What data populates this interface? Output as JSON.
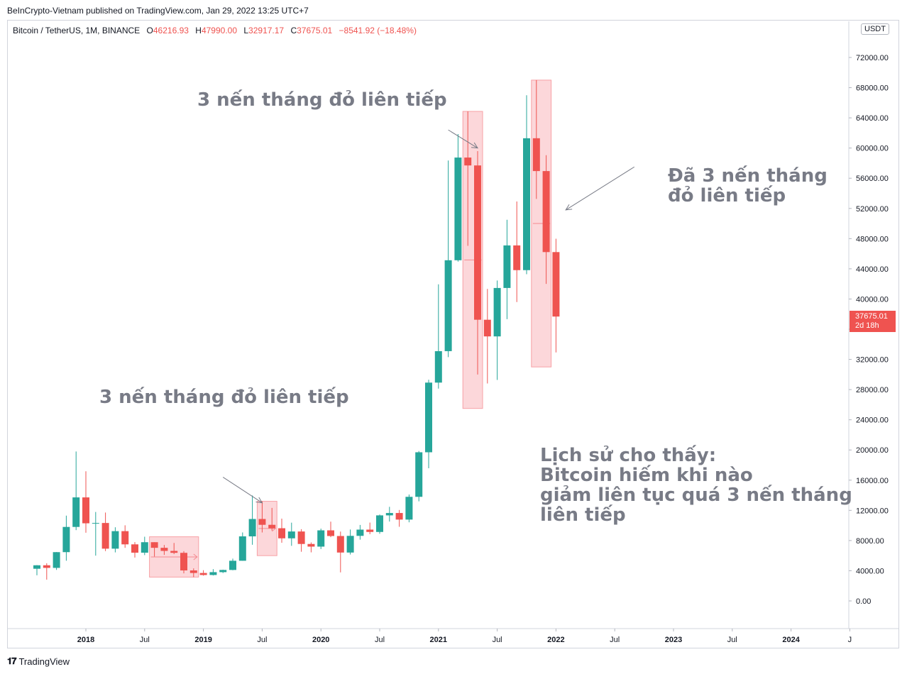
{
  "header": {
    "published": "BeInCrypto-Vietnam published on TradingView.com, Jan 29, 2022 13:25 UTC+7"
  },
  "legend": {
    "symbol": "Bitcoin / TetherUS, 1M, BINANCE",
    "open_label": "O",
    "open": "46216.93",
    "high_label": "H",
    "high": "47990.00",
    "low_label": "L",
    "low": "32917.17",
    "close_label": "C",
    "close": "37675.01",
    "change": "−8541.92 (−18.48%)"
  },
  "price_axis": {
    "currency": "USDT",
    "last_price": "37675.01",
    "countdown": "2d 18h"
  },
  "annotations": {
    "top_label": "3 nến tháng đỏ liên tiếp",
    "right_label": "Đã 3 nến tháng\nđỏ liên tiếp",
    "bottom_label": "3 nến tháng đỏ liên tiếp",
    "history_note": "Lịch sử cho thấy:\nBitcoin hiếm khi nào\ngiảm liên tục quá 3 nến tháng\nliên tiếp"
  },
  "footer": {
    "brand": "TradingView",
    "logo": "tradingview-logo"
  },
  "colors": {
    "up": "#26a69a",
    "down": "#ef5350",
    "highlight": "rgba(242,54,69,0.2)",
    "arrow": "#787b86",
    "text_annotation": "#787b86"
  },
  "chart_data": {
    "type": "candlestick",
    "interval": "1M",
    "ylim": [
      -2000,
      74000
    ],
    "y_ticks": [
      0,
      4000,
      8000,
      12000,
      16000,
      20000,
      24000,
      28000,
      32000,
      36000,
      40000,
      44000,
      48000,
      52000,
      56000,
      60000,
      64000,
      68000,
      72000
    ],
    "y_tick_labels": [
      "0.00",
      "4000.00",
      "8000.00",
      "12000.00",
      "16000.00",
      "20000.00",
      "24000.00",
      "28000.00",
      "32000.00",
      "36000.00",
      "40000.00",
      "44000.00",
      "48000.00",
      "52000.00",
      "56000.00",
      "60000.00",
      "64000.00",
      "68000.00",
      "72000.00"
    ],
    "x_ticks": [
      {
        "month": "2018-01",
        "label": "2018"
      },
      {
        "month": "2018-07",
        "label": "Jul"
      },
      {
        "month": "2019-01",
        "label": "2019"
      },
      {
        "month": "2019-07",
        "label": "Jul"
      },
      {
        "month": "2020-01",
        "label": "2020"
      },
      {
        "month": "2020-07",
        "label": "Jul"
      },
      {
        "month": "2021-01",
        "label": "2021"
      },
      {
        "month": "2021-07",
        "label": "Jul"
      },
      {
        "month": "2022-01",
        "label": "2022"
      },
      {
        "month": "2022-07",
        "label": "Jul"
      },
      {
        "month": "2023-01",
        "label": "2023"
      },
      {
        "month": "2023-07",
        "label": "Jul"
      },
      {
        "month": "2024-01",
        "label": "2024"
      },
      {
        "month": "2024-07",
        "label": "J"
      }
    ],
    "candles": [
      {
        "month": "2017-08",
        "open": 4261,
        "high": 4745,
        "low": 3400,
        "close": 4724
      },
      {
        "month": "2017-09",
        "open": 4724,
        "high": 4989,
        "low": 2817,
        "close": 4378
      },
      {
        "month": "2017-10",
        "open": 4378,
        "high": 6470,
        "low": 4110,
        "close": 6463
      },
      {
        "month": "2017-11",
        "open": 6463,
        "high": 11300,
        "low": 5325,
        "close": 9803
      },
      {
        "month": "2017-12",
        "open": 9803,
        "high": 19798,
        "low": 9380,
        "close": 13716
      },
      {
        "month": "2018-01",
        "open": 13716,
        "high": 17176,
        "low": 9035,
        "close": 10285
      },
      {
        "month": "2018-02",
        "open": 10285,
        "high": 11786,
        "low": 6000,
        "close": 10326
      },
      {
        "month": "2018-03",
        "open": 10326,
        "high": 11710,
        "low": 6600,
        "close": 6923
      },
      {
        "month": "2018-04",
        "open": 6923,
        "high": 9759,
        "low": 6430,
        "close": 9246
      },
      {
        "month": "2018-05",
        "open": 9246,
        "high": 10020,
        "low": 7034,
        "close": 7494
      },
      {
        "month": "2018-06",
        "open": 7494,
        "high": 7786,
        "low": 5750,
        "close": 6391
      },
      {
        "month": "2018-07",
        "open": 6391,
        "high": 8507,
        "low": 6070,
        "close": 7780
      },
      {
        "month": "2018-08",
        "open": 7780,
        "high": 7780,
        "low": 5880,
        "close": 7037
      },
      {
        "month": "2018-09",
        "open": 7037,
        "high": 7410,
        "low": 6100,
        "close": 6626
      },
      {
        "month": "2018-10",
        "open": 6626,
        "high": 7680,
        "low": 6200,
        "close": 6371
      },
      {
        "month": "2018-11",
        "open": 6371,
        "high": 6588,
        "low": 3652,
        "close": 4041
      },
      {
        "month": "2018-12",
        "open": 4041,
        "high": 4312,
        "low": 3156,
        "close": 3702
      },
      {
        "month": "2019-01",
        "open": 3702,
        "high": 4069,
        "low": 3349,
        "close": 3434
      },
      {
        "month": "2019-02",
        "open": 3434,
        "high": 4210,
        "low": 3373,
        "close": 3813
      },
      {
        "month": "2019-03",
        "open": 3813,
        "high": 4140,
        "low": 3690,
        "close": 4103
      },
      {
        "month": "2019-04",
        "open": 4103,
        "high": 5600,
        "low": 4067,
        "close": 5321
      },
      {
        "month": "2019-05",
        "open": 5321,
        "high": 9074,
        "low": 5316,
        "close": 8555
      },
      {
        "month": "2019-06",
        "open": 8555,
        "high": 13970,
        "low": 7440,
        "close": 10855
      },
      {
        "month": "2019-07",
        "open": 10855,
        "high": 13200,
        "low": 9070,
        "close": 10085
      },
      {
        "month": "2019-08",
        "open": 10085,
        "high": 12326,
        "low": 9320,
        "close": 9631
      },
      {
        "month": "2019-09",
        "open": 9631,
        "high": 10905,
        "low": 7710,
        "close": 8294
      },
      {
        "month": "2019-10",
        "open": 8294,
        "high": 10370,
        "low": 7300,
        "close": 9199
      },
      {
        "month": "2019-11",
        "open": 9199,
        "high": 9505,
        "low": 6515,
        "close": 7546
      },
      {
        "month": "2019-12",
        "open": 7546,
        "high": 7750,
        "low": 6435,
        "close": 7195
      },
      {
        "month": "2020-01",
        "open": 7195,
        "high": 9578,
        "low": 6871,
        "close": 9351
      },
      {
        "month": "2020-02",
        "open": 9351,
        "high": 10500,
        "low": 8445,
        "close": 8600
      },
      {
        "month": "2020-03",
        "open": 8600,
        "high": 9188,
        "low": 3782,
        "close": 6410
      },
      {
        "month": "2020-04",
        "open": 6410,
        "high": 9460,
        "low": 6150,
        "close": 8620
      },
      {
        "month": "2020-05",
        "open": 8620,
        "high": 10067,
        "low": 8117,
        "close": 9448
      },
      {
        "month": "2020-06",
        "open": 9448,
        "high": 10380,
        "low": 8833,
        "close": 9138
      },
      {
        "month": "2020-07",
        "open": 9138,
        "high": 11444,
        "low": 8893,
        "close": 11335
      },
      {
        "month": "2020-08",
        "open": 11335,
        "high": 12468,
        "low": 10518,
        "close": 11649
      },
      {
        "month": "2020-09",
        "open": 11649,
        "high": 12050,
        "low": 9825,
        "close": 10776
      },
      {
        "month": "2020-10",
        "open": 10776,
        "high": 14100,
        "low": 10416,
        "close": 13791
      },
      {
        "month": "2020-11",
        "open": 13791,
        "high": 19863,
        "low": 13195,
        "close": 19695
      },
      {
        "month": "2020-12",
        "open": 19695,
        "high": 29300,
        "low": 17572,
        "close": 28923
      },
      {
        "month": "2021-01",
        "open": 28923,
        "high": 41950,
        "low": 28130,
        "close": 33092
      },
      {
        "month": "2021-02",
        "open": 33092,
        "high": 58352,
        "low": 32296,
        "close": 45135
      },
      {
        "month": "2021-03",
        "open": 45135,
        "high": 61844,
        "low": 44950,
        "close": 58740
      },
      {
        "month": "2021-04",
        "open": 58740,
        "high": 64854,
        "low": 47044,
        "close": 57694
      },
      {
        "month": "2021-05",
        "open": 57694,
        "high": 59592,
        "low": 30000,
        "close": 37253
      },
      {
        "month": "2021-06",
        "open": 37253,
        "high": 41330,
        "low": 28805,
        "close": 35045
      },
      {
        "month": "2021-07",
        "open": 35045,
        "high": 42448,
        "low": 29278,
        "close": 41461
      },
      {
        "month": "2021-08",
        "open": 41461,
        "high": 50500,
        "low": 37332,
        "close": 47100
      },
      {
        "month": "2021-09",
        "open": 47100,
        "high": 52920,
        "low": 39600,
        "close": 43824
      },
      {
        "month": "2021-10",
        "open": 43824,
        "high": 67000,
        "low": 43283,
        "close": 61299
      },
      {
        "month": "2021-11",
        "open": 61299,
        "high": 69000,
        "low": 53256,
        "close": 56950
      },
      {
        "month": "2021-12",
        "open": 56950,
        "high": 59053,
        "low": 42000,
        "close": 46217
      },
      {
        "month": "2022-01",
        "open": 46217,
        "high": 47990,
        "low": 32917,
        "close": 37675
      }
    ],
    "highlights": [
      {
        "from": "2018-08",
        "to": "2018-12",
        "top": 8500,
        "bottom": 3156
      },
      {
        "from": "2019-07",
        "to": "2019-08",
        "top": 13200,
        "bottom": 6000
      },
      {
        "from": "2021-04",
        "to": "2021-05",
        "top": 64854,
        "bottom": 25500
      },
      {
        "from": "2021-11",
        "to": "2021-12",
        "top": 69000,
        "bottom": 31000
      }
    ],
    "arrows": [
      {
        "from": {
          "month": "2021-02",
          "price": 62400
        },
        "to": {
          "month": "2021-05",
          "price": 60000
        }
      },
      {
        "from": {
          "month": "2022-09",
          "price": 57500
        },
        "to": {
          "month": "2022-02",
          "price": 51800
        }
      },
      {
        "from": {
          "month": "2019-03",
          "price": 16400
        },
        "to": {
          "month": "2019-07",
          "price": 13000
        }
      }
    ]
  }
}
